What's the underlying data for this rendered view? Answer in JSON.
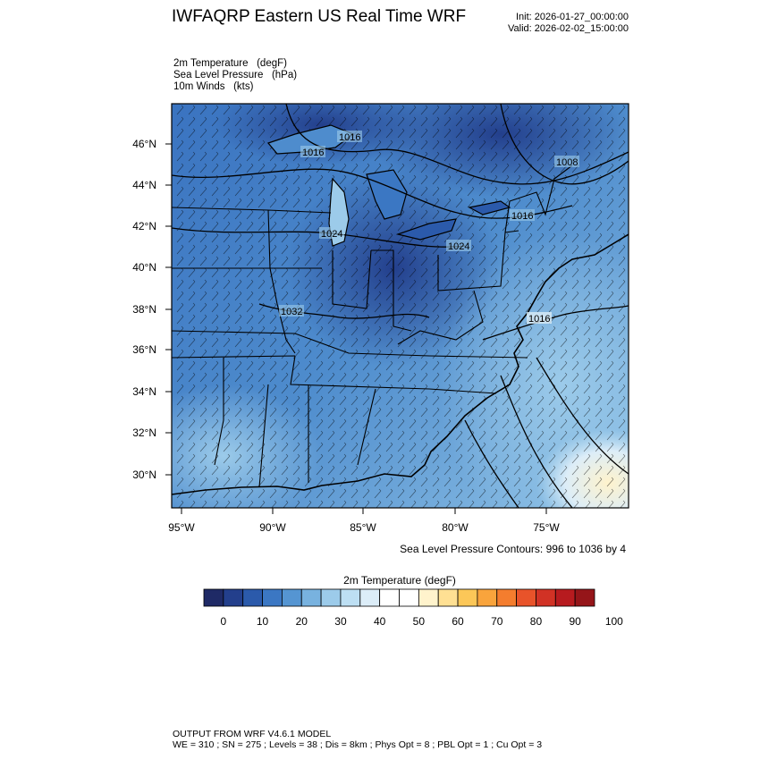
{
  "header": {
    "title": "IWFAQRP Eastern US Real Time WRF",
    "init": "Init: 2026-01-27_00:00:00",
    "valid": "Valid: 2026-02-02_15:00:00"
  },
  "fields": [
    "2m Temperature   (degF)",
    "Sea Level Pressure   (hPa)",
    "10m Winds   (kts)"
  ],
  "map": {
    "lat_labels": [
      "46°N",
      "44°N",
      "42°N",
      "40°N",
      "38°N",
      "36°N",
      "34°N",
      "32°N",
      "30°N"
    ],
    "lon_labels": [
      "95°W",
      "90°W",
      "85°W",
      "80°W",
      "75°W"
    ],
    "isobar_labels": [
      "1016",
      "1016",
      "1008",
      "1016",
      "1024",
      "1024",
      "1032",
      "1016"
    ],
    "contour_note": "Sea Level Pressure Contours: 996 to 1036 by 4"
  },
  "colorbar": {
    "title": "2m Temperature  (degF)",
    "tick_labels": [
      "0",
      "10",
      "20",
      "30",
      "40",
      "50",
      "60",
      "70",
      "80",
      "90",
      "100"
    ],
    "colors": [
      "#1f2a66",
      "#233f8c",
      "#2b5aab",
      "#3b77c3",
      "#5595d2",
      "#78b2df",
      "#9ccbea",
      "#bddff3",
      "#dcedf8",
      "#ffffff",
      "#ffffff",
      "#fff3cc",
      "#ffe093",
      "#fcc758",
      "#f9a43c",
      "#f47d2e",
      "#e8532a",
      "#d13225",
      "#b71b1f",
      "#951519"
    ]
  },
  "footer": {
    "line1": "OUTPUT FROM WRF V4.6.1 MODEL",
    "line2": "WE = 310 ; SN = 275 ; Levels = 38 ; Dis = 8km ; Phys Opt = 8 ; PBL Opt = 1 ; Cu Opt = 3"
  }
}
